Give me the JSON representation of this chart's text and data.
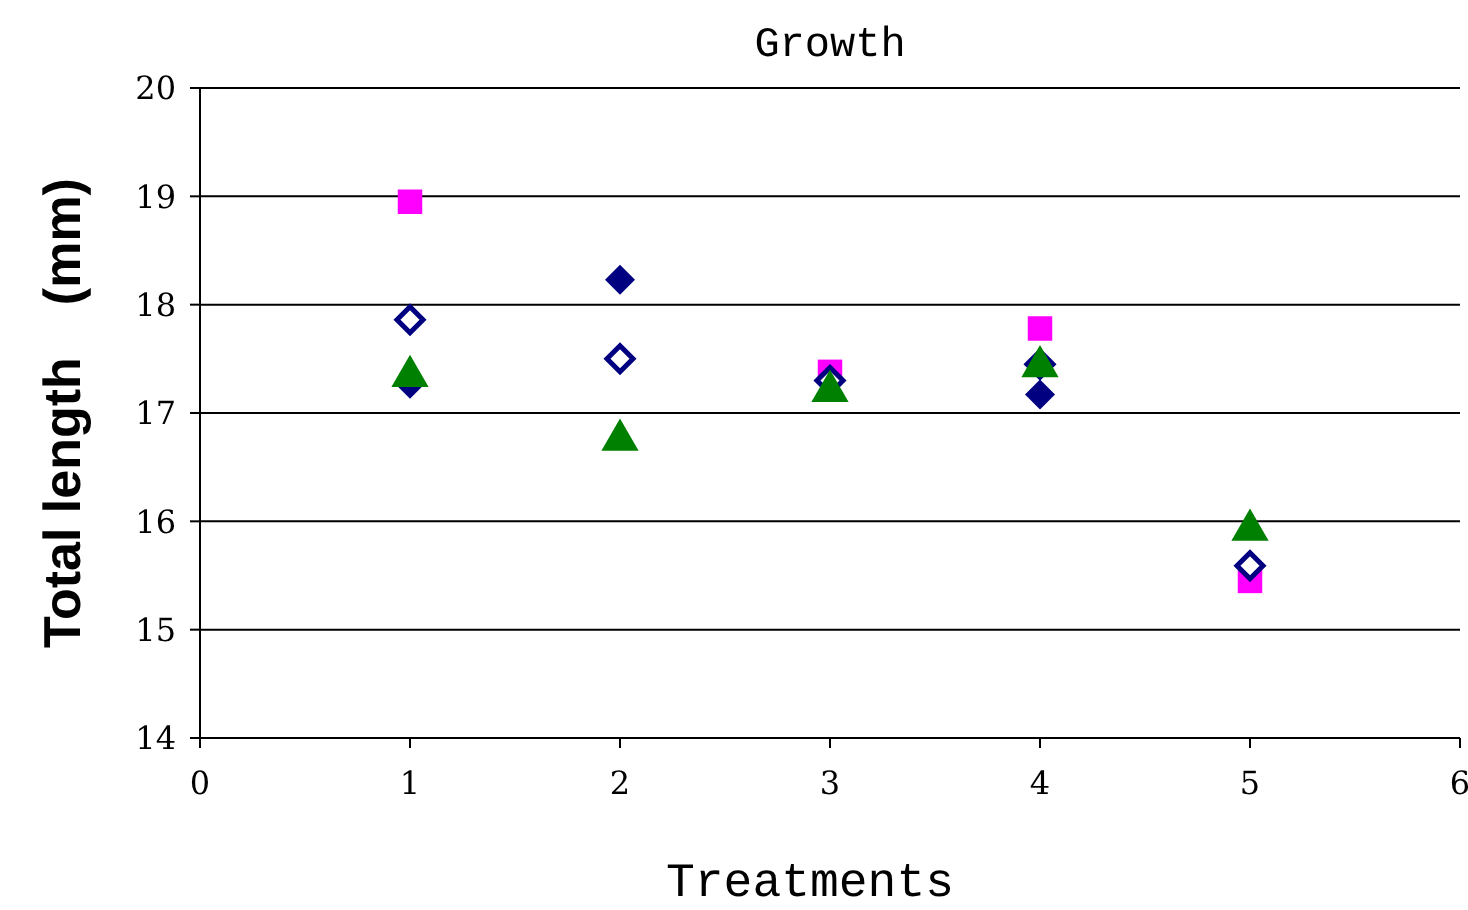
{
  "chart_data": {
    "type": "scatter",
    "title": "Growth",
    "xlabel": "Treatments",
    "ylabel": "Total length　(mm)",
    "x": [
      1,
      2,
      3,
      4,
      5
    ],
    "xlim": [
      0,
      6
    ],
    "xticks": [
      0,
      1,
      2,
      3,
      4,
      5,
      6
    ],
    "ylim": [
      14,
      20
    ],
    "yticks": [
      14,
      15,
      16,
      17,
      18,
      19,
      20
    ],
    "grid": "y",
    "series": [
      {
        "color": "#ff00ff",
        "marker": "square",
        "values": [
          18.95,
          null,
          17.38,
          17.78,
          15.45
        ]
      },
      {
        "color": "#000080",
        "marker": "diamond",
        "values": [
          17.27,
          18.23,
          null,
          17.17,
          null
        ]
      },
      {
        "color": "#000080",
        "marker": "diamond-open",
        "values": [
          17.86,
          17.5,
          17.3,
          17.45,
          15.59
        ]
      },
      {
        "color": "#008000",
        "marker": "triangle",
        "values": [
          17.34,
          16.75,
          17.2,
          17.43,
          15.92
        ]
      }
    ]
  }
}
